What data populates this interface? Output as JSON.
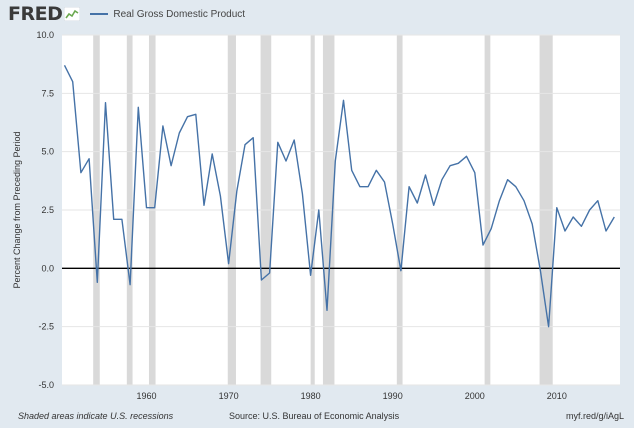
{
  "header": {
    "logo": "FRED",
    "legend_label": "Real Gross Domestic Product"
  },
  "footer": {
    "note": "Shaded areas indicate U.S. recessions",
    "source": "Source: U.S. Bureau of Economic Analysis",
    "url": "myf.red/g/iAgL"
  },
  "colors": {
    "line": "#4572a7",
    "background": "#e1e9f0",
    "plot": "#ffffff",
    "recession": "#d9d9d9",
    "zero_line": "#000000"
  },
  "chart_data": {
    "type": "line",
    "title": "",
    "xlabel": "",
    "ylabel": "Percent Change from Preceding Period",
    "xlim": [
      1949.7,
      2017.7
    ],
    "ylim": [
      -5.0,
      10.0
    ],
    "y_ticks": [
      -5.0,
      -2.5,
      0.0,
      2.5,
      5.0,
      7.5,
      10.0
    ],
    "y_tick_labels": [
      "-5.0",
      "-2.5",
      "0.0",
      "2.5",
      "5.0",
      "7.5",
      "10.0"
    ],
    "x_ticks": [
      1960,
      1970,
      1980,
      1990,
      2000,
      2010
    ],
    "x_tick_labels": [
      "1960",
      "1970",
      "1980",
      "1990",
      "2000",
      "2010"
    ],
    "grid": "horizontal",
    "legend": "top-left",
    "recessions": [
      [
        1953.5,
        1954.3
      ],
      [
        1957.6,
        1958.3
      ],
      [
        1960.3,
        1961.1
      ],
      [
        1969.9,
        1970.9
      ],
      [
        1973.9,
        1975.2
      ],
      [
        1980.0,
        1980.5
      ],
      [
        1981.5,
        1982.9
      ],
      [
        1990.5,
        1991.2
      ],
      [
        2001.2,
        2001.9
      ],
      [
        2007.9,
        2009.5
      ]
    ],
    "series": [
      {
        "name": "Real Gross Domestic Product",
        "x": [
          1950,
          1951,
          1952,
          1953,
          1954,
          1955,
          1956,
          1957,
          1958,
          1959,
          1960,
          1961,
          1962,
          1963,
          1964,
          1965,
          1966,
          1967,
          1968,
          1969,
          1970,
          1971,
          1972,
          1973,
          1974,
          1975,
          1976,
          1977,
          1978,
          1979,
          1980,
          1981,
          1982,
          1983,
          1984,
          1985,
          1986,
          1987,
          1988,
          1989,
          1990,
          1991,
          1992,
          1993,
          1994,
          1995,
          1996,
          1997,
          1998,
          1999,
          2000,
          2001,
          2002,
          2003,
          2004,
          2005,
          2006,
          2007,
          2008,
          2009,
          2010,
          2011,
          2012,
          2013,
          2014,
          2015,
          2016,
          2017
        ],
        "y": [
          8.7,
          8.0,
          4.1,
          4.7,
          -0.6,
          7.1,
          2.1,
          2.1,
          -0.7,
          6.9,
          2.6,
          2.6,
          6.1,
          4.4,
          5.8,
          6.5,
          6.6,
          2.7,
          4.9,
          3.1,
          0.2,
          3.3,
          5.3,
          5.6,
          -0.5,
          -0.2,
          5.4,
          4.6,
          5.5,
          3.2,
          -0.3,
          2.5,
          -1.8,
          4.6,
          7.2,
          4.2,
          3.5,
          3.5,
          4.2,
          3.7,
          1.9,
          -0.1,
          3.5,
          2.8,
          4.0,
          2.7,
          3.8,
          4.4,
          4.5,
          4.8,
          4.1,
          1.0,
          1.7,
          2.9,
          3.8,
          3.5,
          2.9,
          1.9,
          -0.1,
          -2.5,
          2.6,
          1.6,
          2.2,
          1.8,
          2.5,
          2.9,
          1.6,
          2.2
        ]
      }
    ]
  }
}
